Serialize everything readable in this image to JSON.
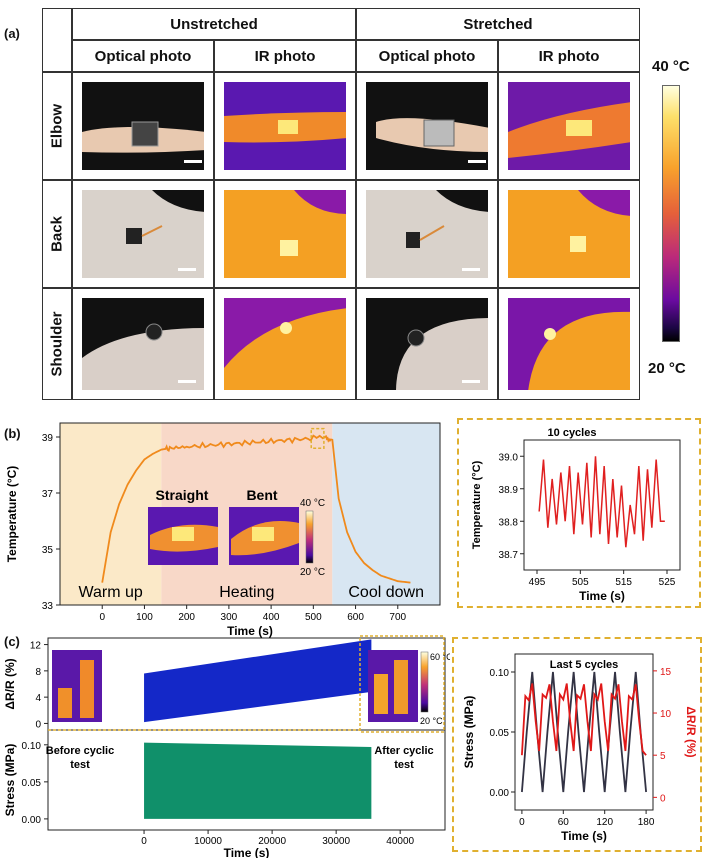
{
  "panels": {
    "a": "(a)",
    "b": "(b)",
    "c": "(c)"
  },
  "table": {
    "group_headers": [
      "Unstretched",
      "Stretched"
    ],
    "column_headers": [
      "Optical photo",
      "IR photo",
      "Optical photo",
      "IR photo"
    ],
    "rows": [
      "Elbow",
      "Back",
      "Shoulder"
    ]
  },
  "colorbar_a": {
    "max_label": "40 °C",
    "min_label": "20 °C"
  },
  "chart_data": [
    {
      "type": "line",
      "id": "b-main",
      "xlabel": "Time (s)",
      "ylabel": "Temperature (°C)",
      "xlim": [
        -100,
        800
      ],
      "ylim": [
        33,
        39.5
      ],
      "xticks": [
        0,
        100,
        200,
        300,
        400,
        500,
        600,
        700
      ],
      "yticks": [
        33,
        35,
        37,
        39
      ],
      "regions": [
        {
          "name": "Warm up",
          "from": -100,
          "to": 140,
          "color": "#fbe9c8"
        },
        {
          "name": "Heating",
          "from": 140,
          "to": 545,
          "color": "#f8d8c8"
        },
        {
          "name": "Cool down",
          "from": 545,
          "to": 800,
          "color": "#d8e6f2"
        }
      ],
      "series": [
        {
          "name": "Temperature",
          "color": "#f08a1c",
          "x": [
            0,
            20,
            40,
            60,
            80,
            100,
            120,
            140,
            160,
            200,
            250,
            300,
            350,
            400,
            450,
            500,
            530,
            545,
            560,
            580,
            600,
            620,
            640,
            660,
            680,
            700,
            730
          ],
          "y": [
            33.8,
            35.6,
            36.6,
            37.3,
            37.8,
            38.2,
            38.4,
            38.55,
            38.6,
            38.65,
            38.7,
            38.75,
            38.8,
            38.85,
            38.9,
            38.95,
            38.95,
            38.9,
            36.8,
            35.6,
            34.9,
            34.5,
            34.25,
            34.05,
            33.95,
            33.85,
            33.8
          ]
        }
      ],
      "inset_labels": {
        "straight": "Straight",
        "bent": "Bent",
        "max": "40 °C",
        "min": "20 °C"
      }
    },
    {
      "type": "line",
      "id": "b-zoom",
      "title": "10 cycles",
      "xlabel": "Time (s)",
      "ylabel": "Temperature (°C)",
      "xlim": [
        492,
        528
      ],
      "ylim": [
        38.65,
        39.05
      ],
      "xticks": [
        495,
        505,
        515,
        525
      ],
      "yticks": [
        38.7,
        38.8,
        38.9,
        39.0
      ],
      "series": [
        {
          "name": "Temperature",
          "color": "#e02020",
          "x": [
            495.5,
            496.5,
            497.5,
            498.5,
            499.5,
            500.5,
            501.5,
            502.5,
            503.5,
            504.5,
            505.5,
            506.5,
            507.5,
            508.5,
            509.5,
            510.5,
            511.5,
            512.5,
            513.5,
            514.5,
            515.5,
            516.5,
            517.5,
            518.5,
            519.5,
            520.5,
            521.5,
            522.5,
            523.5,
            524.5
          ],
          "y": [
            38.83,
            38.99,
            38.78,
            38.93,
            38.79,
            38.95,
            38.8,
            38.97,
            38.76,
            38.95,
            38.79,
            38.98,
            38.75,
            39.0,
            38.76,
            38.97,
            38.73,
            38.93,
            38.75,
            38.91,
            38.72,
            38.85,
            38.76,
            38.97,
            38.74,
            38.96,
            38.78,
            38.99,
            38.8,
            38.8
          ]
        }
      ]
    },
    {
      "type": "area",
      "id": "c-dr",
      "ylabel": "ΔR/R (%)",
      "xlim": [
        -15000,
        47000
      ],
      "ylim": [
        -1,
        13
      ],
      "yticks": [
        0,
        4,
        8,
        12
      ],
      "series": [
        {
          "name": "ΔR/R envelope",
          "color": "#1428c8",
          "x": [
            0,
            35500
          ],
          "upper": [
            7.6,
            12.8
          ],
          "lower": [
            0.2,
            4.8
          ]
        }
      ]
    },
    {
      "type": "area",
      "id": "c-stress",
      "xlabel": "Time (s)",
      "ylabel": "Stress (MPa)",
      "xlim": [
        -15000,
        47000
      ],
      "ylim": [
        -0.015,
        0.12
      ],
      "xticks": [
        0,
        10000,
        20000,
        30000,
        40000
      ],
      "yticks": [
        0.0,
        0.05,
        0.1
      ],
      "series": [
        {
          "name": "Stress envelope",
          "color": "#10906a",
          "x": [
            0,
            35500
          ],
          "upper": [
            0.103,
            0.097
          ],
          "lower": [
            0.0,
            0.0
          ]
        }
      ],
      "labels": {
        "before": "Before cyclic test",
        "after": "After cyclic test",
        "cb_max": "60 °C",
        "cb_min": "20 °C"
      }
    },
    {
      "type": "line",
      "id": "c-zoom",
      "title": "Last 5 cycles",
      "xlabel": "Time (s)",
      "ylabel": "Stress (MPa)",
      "ylabel_right": "ΔR/R (%)",
      "xlim": [
        -10,
        190
      ],
      "ylim": [
        -0.015,
        0.115
      ],
      "ylim_right": [
        -1.5,
        17
      ],
      "xticks": [
        0,
        60,
        120,
        180
      ],
      "yticks": [
        0.0,
        0.05,
        0.1
      ],
      "yticks_right": [
        0,
        5,
        10,
        15
      ],
      "series": [
        {
          "name": "Stress",
          "color": "#333344",
          "x": [
            0,
            7,
            15,
            22,
            30,
            37,
            45,
            52,
            60,
            67,
            75,
            82,
            90,
            97,
            105,
            112,
            120,
            127,
            135,
            142,
            150,
            157,
            165,
            172,
            180
          ],
          "y": [
            0.0,
            0.05,
            0.1,
            0.05,
            0.0,
            0.05,
            0.1,
            0.05,
            0.0,
            0.05,
            0.1,
            0.05,
            0.0,
            0.05,
            0.1,
            0.05,
            0.0,
            0.05,
            0.1,
            0.05,
            0.0,
            0.05,
            0.1,
            0.05,
            0.0
          ]
        },
        {
          "name": "ΔR/R",
          "color": "#e01818",
          "axis": "right",
          "x": [
            0,
            5,
            10,
            15,
            20,
            25,
            30,
            35,
            40,
            45,
            50,
            55,
            60,
            65,
            70,
            75,
            80,
            85,
            90,
            95,
            100,
            105,
            110,
            115,
            120,
            125,
            130,
            135,
            140,
            145,
            150,
            155,
            160,
            165,
            170,
            175,
            180
          ],
          "y": [
            5,
            12,
            11.5,
            13.5,
            9,
            5.5,
            12.2,
            11.8,
            13.4,
            9,
            5.5,
            12.2,
            11.6,
            13.5,
            9,
            5.5,
            12.1,
            11.7,
            13.4,
            9,
            5.5,
            12.2,
            11.6,
            13.5,
            9,
            5.5,
            12.2,
            11.7,
            13.4,
            9,
            5.5,
            12,
            11.6,
            13.4,
            9,
            5.5,
            5
          ]
        }
      ]
    }
  ]
}
